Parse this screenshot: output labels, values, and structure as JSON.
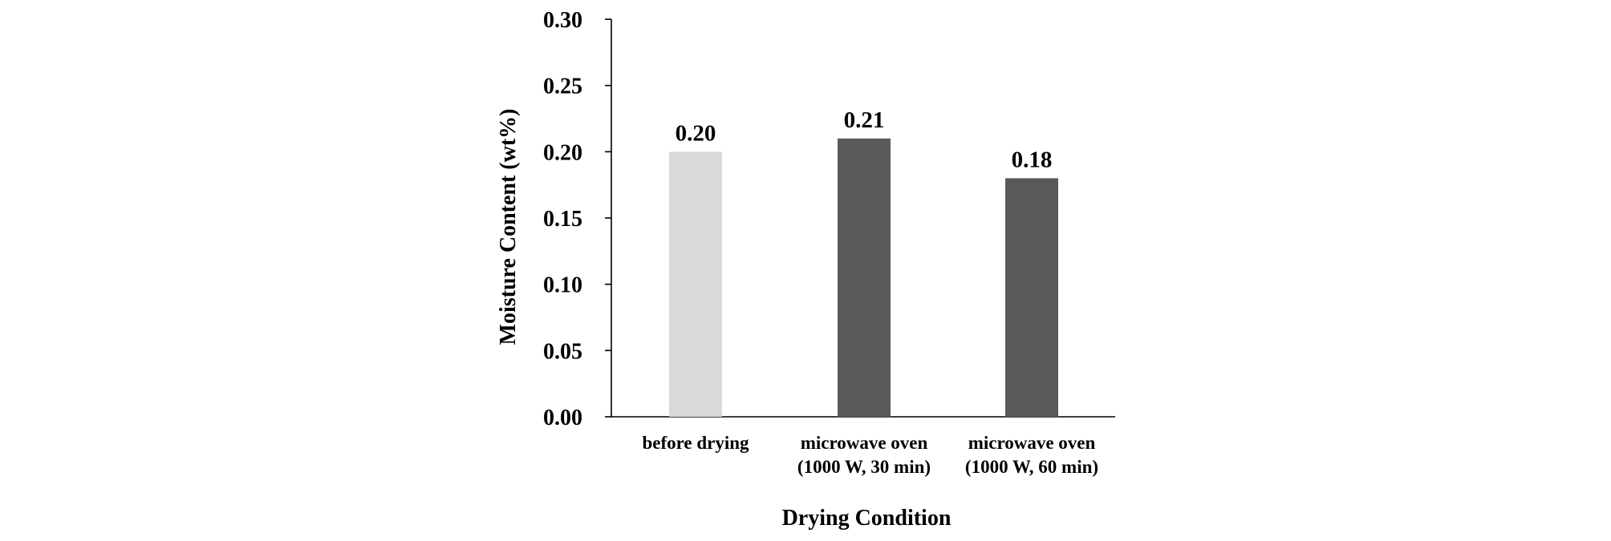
{
  "chart_data": {
    "type": "bar",
    "categories": [
      [
        "before drying"
      ],
      [
        "microwave oven",
        "(1000 W, 30 min)"
      ],
      [
        "microwave oven",
        "(1000 W, 60 min)"
      ]
    ],
    "values": [
      0.2,
      0.21,
      0.18
    ],
    "data_labels": [
      "0.20",
      "0.21",
      "0.18"
    ],
    "bar_colors": [
      "#d9d9d9",
      "#595959",
      "#595959"
    ],
    "xlabel": "Drying Condition",
    "ylabel": "Moisture Content (wt%)",
    "ylim": [
      0,
      0.3
    ],
    "yticks": [
      0.0,
      0.05,
      0.1,
      0.15,
      0.2,
      0.25,
      0.3
    ],
    "ytick_labels": [
      "0.00",
      "0.05",
      "0.10",
      "0.15",
      "0.20",
      "0.25",
      "0.30"
    ],
    "grid": false,
    "legend": "none"
  }
}
